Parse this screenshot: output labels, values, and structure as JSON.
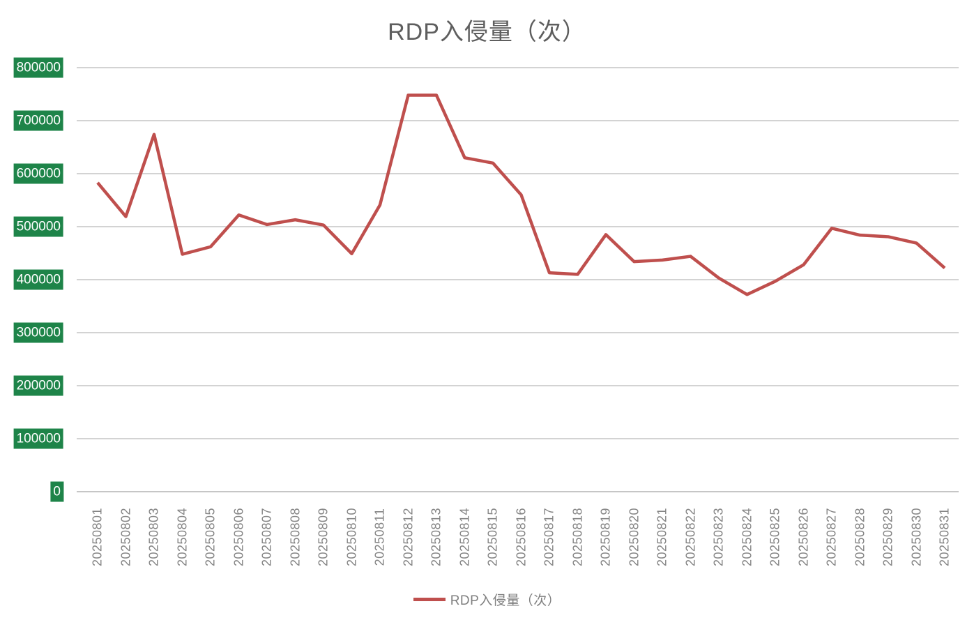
{
  "title": "RDP入侵量（次）",
  "legend": {
    "label": "RDP入侵量（次）"
  },
  "colors": {
    "line": "#BF4F4D",
    "tick_chip_background": "#1E8449",
    "tick_chip_text": "#ffffff",
    "gridline": "#d3d3d3",
    "axis_line": "#c6c6c6",
    "title_text": "#5e5e5e",
    "axis_label_text": "#848484",
    "legend_text": "#7f7f7f",
    "background": "#ffffff"
  },
  "chart_data": {
    "type": "line",
    "title": "RDP入侵量（次）",
    "xlabel": "",
    "ylabel": "",
    "ylim": [
      0,
      800000
    ],
    "grid": true,
    "legend_position": "bottom",
    "y_ticks": [
      "800000",
      "700000",
      "600000",
      "500000",
      "400000",
      "300000",
      "200000",
      "100000",
      "0"
    ],
    "categories": [
      "20250801",
      "20250802",
      "20250803",
      "20250804",
      "20250805",
      "20250806",
      "20250807",
      "20250808",
      "20250809",
      "20250810",
      "20250811",
      "20250812",
      "20250813",
      "20250814",
      "20250815",
      "20250816",
      "20250817",
      "20250818",
      "20250819",
      "20250820",
      "20250821",
      "20250822",
      "20250823",
      "20250824",
      "20250825",
      "20250826",
      "20250827",
      "20250828",
      "20250829",
      "20250830",
      "20250831"
    ],
    "series": [
      {
        "name": "RDP入侵量（次）",
        "values": [
          583000,
          519000,
          674000,
          448000,
          462000,
          522000,
          504000,
          513000,
          503000,
          449000,
          541000,
          748000,
          748000,
          630000,
          620000,
          560000,
          413000,
          410000,
          485000,
          434000,
          437000,
          444000,
          403000,
          372000,
          397000,
          428000,
          497000,
          484000,
          481000,
          469000,
          422000
        ]
      }
    ]
  }
}
